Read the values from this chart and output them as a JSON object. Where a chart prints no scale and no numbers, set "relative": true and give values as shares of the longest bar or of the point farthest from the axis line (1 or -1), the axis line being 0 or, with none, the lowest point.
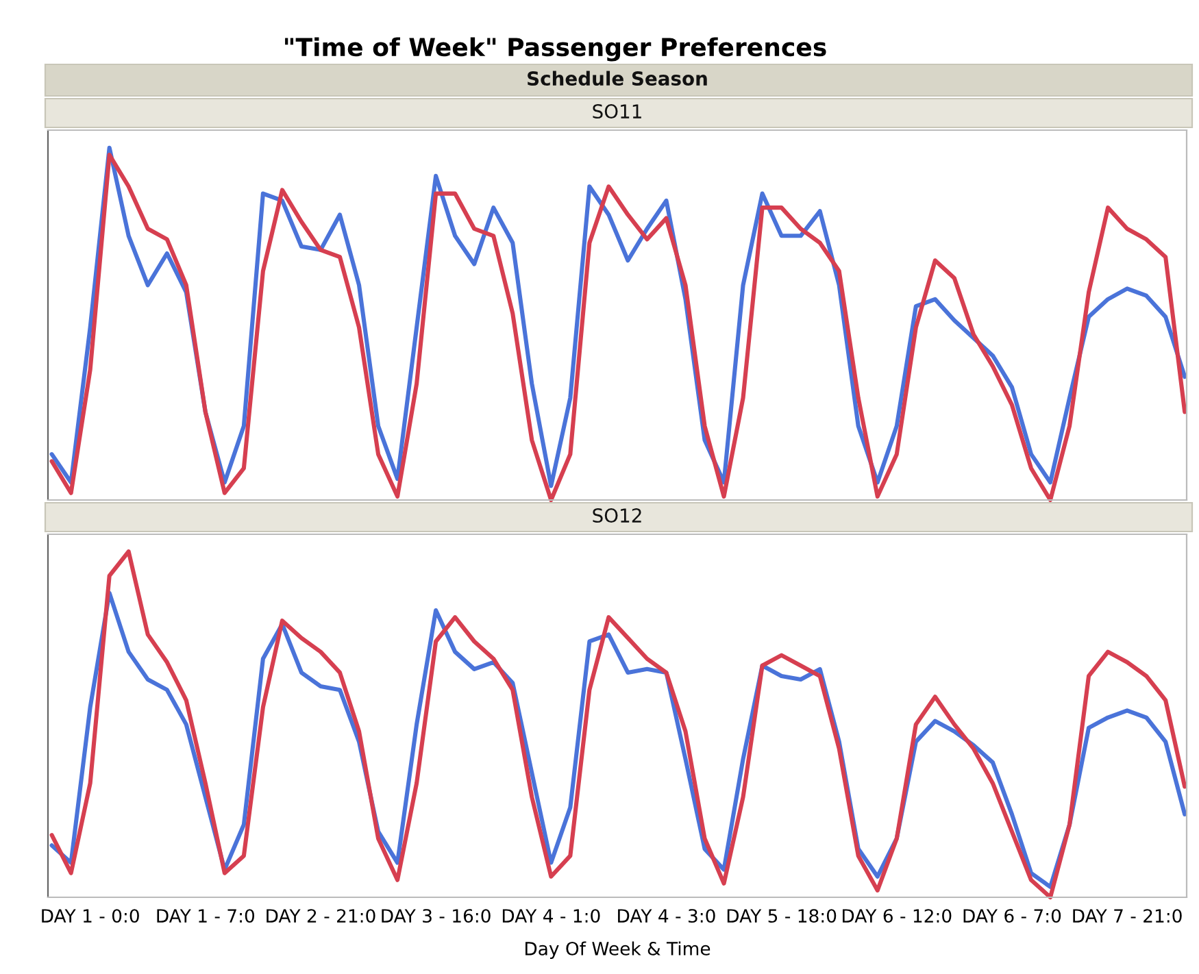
{
  "chart_data": [
    {
      "type": "line",
      "title": "\"Time of Week\" Passenger Preferences",
      "subtitle": "Schedule Season",
      "annotations": [
        "SO11"
      ],
      "relative": true,
      "tick_labels": false,
      "marker": "none",
      "line_style": "solid",
      "categories": [
        null,
        null,
        null,
        null,
        null,
        null,
        null,
        null,
        null,
        null,
        null,
        null,
        null,
        null,
        null,
        null,
        null,
        null,
        null,
        null,
        null,
        null,
        null,
        null,
        null,
        null,
        null,
        null,
        null,
        null,
        null,
        null,
        null,
        null,
        null,
        null,
        null,
        null,
        null,
        null,
        null,
        null,
        null,
        null,
        null,
        null,
        null,
        null,
        null,
        null,
        null,
        null,
        null,
        null,
        null,
        null,
        null,
        null,
        null,
        null
      ],
      "series": [
        {
          "color": "#4a73d9",
          "values": [
            0.13,
            0.05,
            0.49,
            1.0,
            0.75,
            0.61,
            0.7,
            0.59,
            0.25,
            0.05,
            0.21,
            0.87,
            0.85,
            0.72,
            0.71,
            0.81,
            0.61,
            0.21,
            0.06,
            0.49,
            0.92,
            0.75,
            0.67,
            0.83,
            0.73,
            0.33,
            0.04,
            0.29,
            0.89,
            0.81,
            0.68,
            0.77,
            0.85,
            0.57,
            0.17,
            0.05,
            0.61,
            0.87,
            0.75,
            0.75,
            0.82,
            0.61,
            0.21,
            0.05,
            0.21,
            0.55,
            0.57,
            0.51,
            0.46,
            0.41,
            0.32,
            0.13,
            0.05,
            0.29,
            0.52,
            0.57,
            0.6,
            0.58,
            0.52,
            0.35
          ]
        },
        {
          "color": "#d63f50",
          "values": [
            0.11,
            0.02,
            0.37,
            0.98,
            0.89,
            0.77,
            0.74,
            0.61,
            0.25,
            0.02,
            0.09,
            0.65,
            0.88,
            0.79,
            0.71,
            0.69,
            0.49,
            0.13,
            0.01,
            0.33,
            0.87,
            0.87,
            0.77,
            0.75,
            0.53,
            0.17,
            0.0,
            0.13,
            0.73,
            0.89,
            0.81,
            0.74,
            0.8,
            0.61,
            0.21,
            0.01,
            0.29,
            0.83,
            0.83,
            0.77,
            0.73,
            0.65,
            0.29,
            0.01,
            0.13,
            0.49,
            0.68,
            0.63,
            0.47,
            0.38,
            0.27,
            0.09,
            0.0,
            0.21,
            0.59,
            0.83,
            0.77,
            0.74,
            0.69,
            0.25
          ]
        }
      ]
    },
    {
      "type": "line",
      "annotations": [
        "SO12"
      ],
      "xlabel": "Day Of Week & Time",
      "relative": true,
      "tick_labels": "x",
      "marker": "none",
      "line_style": "solid",
      "categories": [
        null,
        null,
        "DAY 1 - 0:0",
        null,
        null,
        null,
        null,
        null,
        "DAY 1 - 7:0",
        null,
        null,
        null,
        null,
        null,
        "DAY 2 - 21:0",
        null,
        null,
        null,
        null,
        null,
        "DAY 3 - 16:0",
        null,
        null,
        null,
        null,
        null,
        "DAY 4 - 1:0",
        null,
        null,
        null,
        null,
        null,
        "DAY 4 - 3:0",
        null,
        null,
        null,
        null,
        null,
        "DAY 5 - 18:0",
        null,
        null,
        null,
        null,
        null,
        "DAY 6 - 12:0",
        null,
        null,
        null,
        null,
        null,
        "DAY 6 - 7:0",
        null,
        null,
        null,
        null,
        null,
        "DAY 7 - 21:0",
        null,
        null,
        null
      ],
      "series": [
        {
          "color": "#4a73d9",
          "values": [
            0.15,
            0.1,
            0.55,
            0.88,
            0.71,
            0.63,
            0.6,
            0.5,
            0.29,
            0.08,
            0.21,
            0.69,
            0.79,
            0.65,
            0.61,
            0.6,
            0.45,
            0.19,
            0.1,
            0.5,
            0.83,
            0.71,
            0.66,
            0.68,
            0.62,
            0.36,
            0.1,
            0.26,
            0.74,
            0.76,
            0.65,
            0.66,
            0.65,
            0.4,
            0.14,
            0.08,
            0.4,
            0.67,
            0.64,
            0.63,
            0.66,
            0.45,
            0.14,
            0.06,
            0.17,
            0.45,
            0.51,
            0.48,
            0.44,
            0.39,
            0.24,
            0.07,
            0.03,
            0.21,
            0.49,
            0.52,
            0.54,
            0.52,
            0.45,
            0.24
          ]
        },
        {
          "color": "#d63f50",
          "values": [
            0.18,
            0.07,
            0.33,
            0.93,
            1.0,
            0.76,
            0.68,
            0.57,
            0.33,
            0.07,
            0.12,
            0.55,
            0.8,
            0.75,
            0.71,
            0.65,
            0.48,
            0.17,
            0.05,
            0.33,
            0.74,
            0.81,
            0.74,
            0.69,
            0.6,
            0.29,
            0.06,
            0.12,
            0.6,
            0.81,
            0.75,
            0.69,
            0.65,
            0.48,
            0.17,
            0.04,
            0.29,
            0.67,
            0.7,
            0.67,
            0.64,
            0.43,
            0.12,
            0.02,
            0.17,
            0.5,
            0.58,
            0.5,
            0.43,
            0.33,
            0.19,
            0.05,
            0.0,
            0.21,
            0.64,
            0.71,
            0.68,
            0.64,
            0.57,
            0.32
          ]
        }
      ]
    }
  ]
}
